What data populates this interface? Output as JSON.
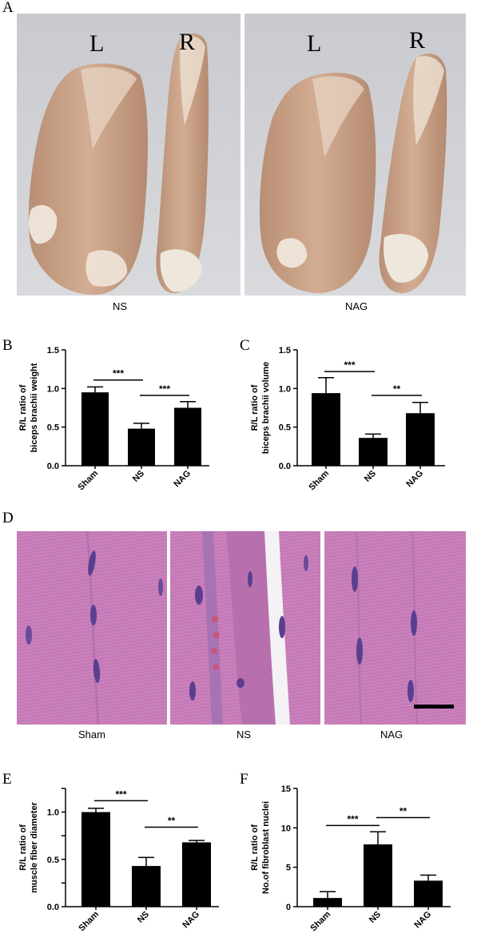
{
  "panels": {
    "A": {
      "letter": "A",
      "images": [
        {
          "caption": "NS",
          "left_label": "L",
          "right_label": "R"
        },
        {
          "caption": "NAG",
          "left_label": "L",
          "right_label": "R"
        }
      ]
    },
    "B": {
      "letter": "B"
    },
    "C": {
      "letter": "C"
    },
    "D": {
      "letter": "D",
      "captions": [
        "Sham",
        "NS",
        "NAG"
      ]
    },
    "E": {
      "letter": "E"
    },
    "F": {
      "letter": "F"
    }
  },
  "chart_data": [
    {
      "id": "B",
      "type": "bar",
      "categories": [
        "Sham",
        "NS",
        "NAG"
      ],
      "values": [
        0.95,
        0.48,
        0.75
      ],
      "errors": [
        0.07,
        0.07,
        0.08
      ],
      "ylabel": [
        "R/L ratio of",
        "biceps brachii  weight"
      ],
      "ylim": [
        0,
        1.5
      ],
      "yticks": [
        0.0,
        0.5,
        1.0,
        1.5
      ],
      "significance": [
        {
          "from": 0,
          "to": 1,
          "label": "***",
          "y": 1.11
        },
        {
          "from": 1,
          "to": 2,
          "label": "***",
          "y": 0.91
        }
      ]
    },
    {
      "id": "C",
      "type": "bar",
      "categories": [
        "Sham",
        "NS",
        "NAG"
      ],
      "values": [
        0.94,
        0.36,
        0.68
      ],
      "errors": [
        0.2,
        0.05,
        0.14
      ],
      "ylabel": [
        "R/L ratio of",
        "biceps brachii volume"
      ],
      "ylim": [
        0,
        1.5
      ],
      "yticks": [
        0.0,
        0.5,
        1.0,
        1.5
      ],
      "significance": [
        {
          "from": 0,
          "to": 1,
          "label": "***",
          "y": 1.22
        },
        {
          "from": 1,
          "to": 2,
          "label": "**",
          "y": 0.91
        }
      ]
    },
    {
      "id": "E",
      "type": "bar",
      "categories": [
        "Sham",
        "NS",
        "NAG"
      ],
      "values": [
        1.0,
        0.43,
        0.68
      ],
      "errors": [
        0.04,
        0.09,
        0.02
      ],
      "ylabel": [
        "R/L ratio of",
        "muscle fiber diameter"
      ],
      "ylim": [
        0,
        1.25
      ],
      "yticks": [
        0.0,
        0.25,
        0.5,
        0.75,
        1.0,
        1.25
      ],
      "ytick_labels": [
        "0.0",
        "",
        "0.5",
        "",
        "1.0",
        ""
      ],
      "significance": [
        {
          "from": 0,
          "to": 1,
          "label": "***",
          "y": 1.12
        },
        {
          "from": 1,
          "to": 2,
          "label": "**",
          "y": 0.84
        }
      ]
    },
    {
      "id": "F",
      "type": "bar",
      "categories": [
        "Sham",
        "NS",
        "NAG"
      ],
      "values": [
        1.1,
        7.9,
        3.3
      ],
      "errors": [
        0.8,
        1.6,
        0.7
      ],
      "ylabel": [
        "R/L ratio of",
        "No.of  fibroblast nuclei"
      ],
      "ylim": [
        0,
        15
      ],
      "yticks": [
        0,
        5,
        10,
        15
      ],
      "significance": [
        {
          "from": 0,
          "to": 1,
          "label": "***",
          "y": 10.3
        },
        {
          "from": 1,
          "to": 2,
          "label": "**",
          "y": 11.3
        }
      ]
    }
  ],
  "colors": {
    "bar": "#000000",
    "muscle_base": "#c59f86",
    "muscle_light": "#e4cbb6",
    "tendon": "#ece5dc",
    "background_tray": "#d3d4d8",
    "he_pink": "#c77fb8",
    "he_nuclei": "#5a3f90"
  }
}
